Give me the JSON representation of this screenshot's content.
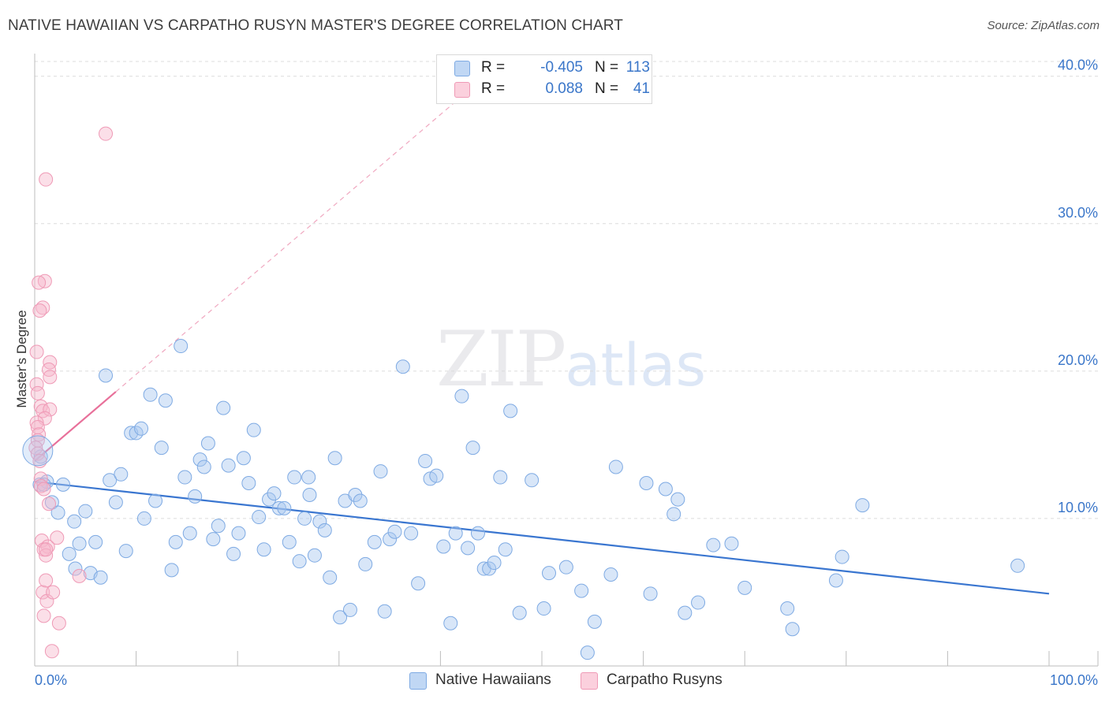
{
  "title": "NATIVE HAWAIIAN VS CARPATHO RUSYN MASTER'S DEGREE CORRELATION CHART",
  "source": "Source: ZipAtlas.com",
  "watermark": {
    "zip": "ZIP",
    "atlas": "atlas"
  },
  "legend": {
    "rows": [
      {
        "r_label": "R =",
        "r_value": "-0.405",
        "n_label": "N =",
        "n_value": "113",
        "color": "#a9c8f0"
      },
      {
        "r_label": "R =",
        "r_value": "0.088",
        "n_label": "N =",
        "n_value": "41",
        "color": "#f7b7cb"
      }
    ]
  },
  "bottom_legend": {
    "series1": "Native Hawaiians",
    "series2": "Carpatho Rusyns"
  },
  "chart_data": {
    "type": "scatter",
    "title": "NATIVE HAWAIIAN VS CARPATHO RUSYN MASTER'S DEGREE CORRELATION CHART",
    "xlabel": "",
    "ylabel": "Master's Degree",
    "xlim": [
      0,
      100
    ],
    "ylim": [
      0,
      41
    ],
    "x_tick_labels": [
      "0.0%",
      "100.0%"
    ],
    "y_ticks": [
      10,
      20,
      30,
      40
    ],
    "y_tick_labels": [
      "10.0%",
      "20.0%",
      "30.0%",
      "40.0%"
    ],
    "grid": true,
    "legend_position": "top-center",
    "colors": {
      "series1": "#3a76d0",
      "series1_fill": "#a9c8f0",
      "series2": "#e8709a",
      "series2_fill": "#f7b7cb"
    },
    "series": [
      {
        "name": "Native Hawaiians",
        "r": -0.405,
        "n": 113,
        "trend": {
          "x": [
            0,
            100
          ],
          "y": [
            12.5,
            4.9
          ]
        },
        "points": [
          [
            0.5,
            12.3
          ],
          [
            0.6,
            14.2
          ],
          [
            1.2,
            12.5
          ],
          [
            1.7,
            11.1
          ],
          [
            2.3,
            10.4
          ],
          [
            2.8,
            12.3
          ],
          [
            3.4,
            7.6
          ],
          [
            3.9,
            9.8
          ],
          [
            4.4,
            8.3
          ],
          [
            5.0,
            10.5
          ],
          [
            5.5,
            6.3
          ],
          [
            6.0,
            8.4
          ],
          [
            6.5,
            6.0
          ],
          [
            7.0,
            19.7
          ],
          [
            7.4,
            12.6
          ],
          [
            8.0,
            11.1
          ],
          [
            8.5,
            13.0
          ],
          [
            9.0,
            7.8
          ],
          [
            9.5,
            15.8
          ],
          [
            10.0,
            15.8
          ],
          [
            10.5,
            16.1
          ],
          [
            10.8,
            10.0
          ],
          [
            11.4,
            18.4
          ],
          [
            11.9,
            11.2
          ],
          [
            12.5,
            14.8
          ],
          [
            12.9,
            18.0
          ],
          [
            13.5,
            6.5
          ],
          [
            13.9,
            8.4
          ],
          [
            14.4,
            21.7
          ],
          [
            14.8,
            12.8
          ],
          [
            15.3,
            9.0
          ],
          [
            15.8,
            11.5
          ],
          [
            16.3,
            14.0
          ],
          [
            16.7,
            13.5
          ],
          [
            17.1,
            15.1
          ],
          [
            17.6,
            8.6
          ],
          [
            18.1,
            9.5
          ],
          [
            18.6,
            17.5
          ],
          [
            19.1,
            13.6
          ],
          [
            19.6,
            7.6
          ],
          [
            20.1,
            9.0
          ],
          [
            20.6,
            14.1
          ],
          [
            21.1,
            12.4
          ],
          [
            21.6,
            16.0
          ],
          [
            22.1,
            10.1
          ],
          [
            22.6,
            7.9
          ],
          [
            23.1,
            11.3
          ],
          [
            23.6,
            11.7
          ],
          [
            24.1,
            10.7
          ],
          [
            24.6,
            10.7
          ],
          [
            25.1,
            8.4
          ],
          [
            25.6,
            12.8
          ],
          [
            26.1,
            7.1
          ],
          [
            26.6,
            10.0
          ],
          [
            27.1,
            11.6
          ],
          [
            27.6,
            7.5
          ],
          [
            28.1,
            9.8
          ],
          [
            28.6,
            9.2
          ],
          [
            29.1,
            6.0
          ],
          [
            29.6,
            14.1
          ],
          [
            30.1,
            3.3
          ],
          [
            30.6,
            11.2
          ],
          [
            31.1,
            3.8
          ],
          [
            31.6,
            11.6
          ],
          [
            32.1,
            11.2
          ],
          [
            32.6,
            6.9
          ],
          [
            33.5,
            8.4
          ],
          [
            34.1,
            13.2
          ],
          [
            34.5,
            3.7
          ],
          [
            35.0,
            8.6
          ],
          [
            35.5,
            9.1
          ],
          [
            36.3,
            20.3
          ],
          [
            37.1,
            9.0
          ],
          [
            37.8,
            5.6
          ],
          [
            38.5,
            13.9
          ],
          [
            39.0,
            12.7
          ],
          [
            39.6,
            12.9
          ],
          [
            40.3,
            8.1
          ],
          [
            41.0,
            2.9
          ],
          [
            42.1,
            18.3
          ],
          [
            42.7,
            8.0
          ],
          [
            43.2,
            14.8
          ],
          [
            43.7,
            9.0
          ],
          [
            44.3,
            6.6
          ],
          [
            44.8,
            6.6
          ],
          [
            45.3,
            7.0
          ],
          [
            45.9,
            12.8
          ],
          [
            46.4,
            7.9
          ],
          [
            46.9,
            17.3
          ],
          [
            47.8,
            3.6
          ],
          [
            49.0,
            12.6
          ],
          [
            50.2,
            3.9
          ],
          [
            50.7,
            6.3
          ],
          [
            52.4,
            6.7
          ],
          [
            53.9,
            5.1
          ],
          [
            54.5,
            0.9
          ],
          [
            56.8,
            6.2
          ],
          [
            57.3,
            13.5
          ],
          [
            60.3,
            12.4
          ],
          [
            60.7,
            4.9
          ],
          [
            62.2,
            12.0
          ],
          [
            63.0,
            10.3
          ],
          [
            63.4,
            11.3
          ],
          [
            64.1,
            3.6
          ],
          [
            65.4,
            4.3
          ],
          [
            66.9,
            8.2
          ],
          [
            68.7,
            8.3
          ],
          [
            70.0,
            5.3
          ],
          [
            74.2,
            3.9
          ],
          [
            74.7,
            2.5
          ],
          [
            79.0,
            5.8
          ],
          [
            79.6,
            7.4
          ],
          [
            81.6,
            10.9
          ],
          [
            96.9,
            6.8
          ],
          [
            0.9,
            12.3
          ],
          [
            4.0,
            6.6
          ],
          [
            27.0,
            12.8
          ],
          [
            55.2,
            3.0
          ],
          [
            41.5,
            9.0
          ]
        ]
      },
      {
        "name": "Carpatho Rusyns",
        "r": 0.088,
        "n": 41,
        "trend": {
          "x": [
            0,
            8.0
          ],
          "y": [
            13.9,
            18.6
          ]
        },
        "points": [
          [
            7.0,
            36.1
          ],
          [
            1.1,
            33.0
          ],
          [
            1.0,
            26.1
          ],
          [
            0.4,
            26.0
          ],
          [
            0.8,
            24.3
          ],
          [
            0.5,
            24.1
          ],
          [
            0.2,
            21.3
          ],
          [
            1.5,
            20.6
          ],
          [
            1.4,
            20.1
          ],
          [
            1.5,
            19.6
          ],
          [
            0.2,
            19.1
          ],
          [
            0.3,
            18.5
          ],
          [
            0.6,
            17.6
          ],
          [
            0.8,
            17.3
          ],
          [
            1.5,
            17.4
          ],
          [
            1.0,
            16.8
          ],
          [
            0.2,
            16.5
          ],
          [
            0.3,
            16.2
          ],
          [
            0.4,
            15.7
          ],
          [
            0.3,
            15.3
          ],
          [
            0.1,
            14.8
          ],
          [
            0.3,
            14.4
          ],
          [
            0.5,
            13.9
          ],
          [
            0.6,
            12.7
          ],
          [
            0.6,
            12.2
          ],
          [
            0.9,
            12.0
          ],
          [
            1.4,
            11.0
          ],
          [
            0.7,
            8.5
          ],
          [
            1.3,
            8.1
          ],
          [
            0.9,
            7.9
          ],
          [
            1.1,
            7.5
          ],
          [
            2.2,
            8.7
          ],
          [
            0.8,
            5.0
          ],
          [
            1.2,
            4.4
          ],
          [
            1.8,
            5.0
          ],
          [
            1.1,
            5.8
          ],
          [
            4.4,
            6.1
          ],
          [
            0.9,
            3.4
          ],
          [
            2.4,
            2.9
          ],
          [
            1.7,
            1.0
          ],
          [
            1.1,
            7.9
          ]
        ]
      }
    ]
  }
}
